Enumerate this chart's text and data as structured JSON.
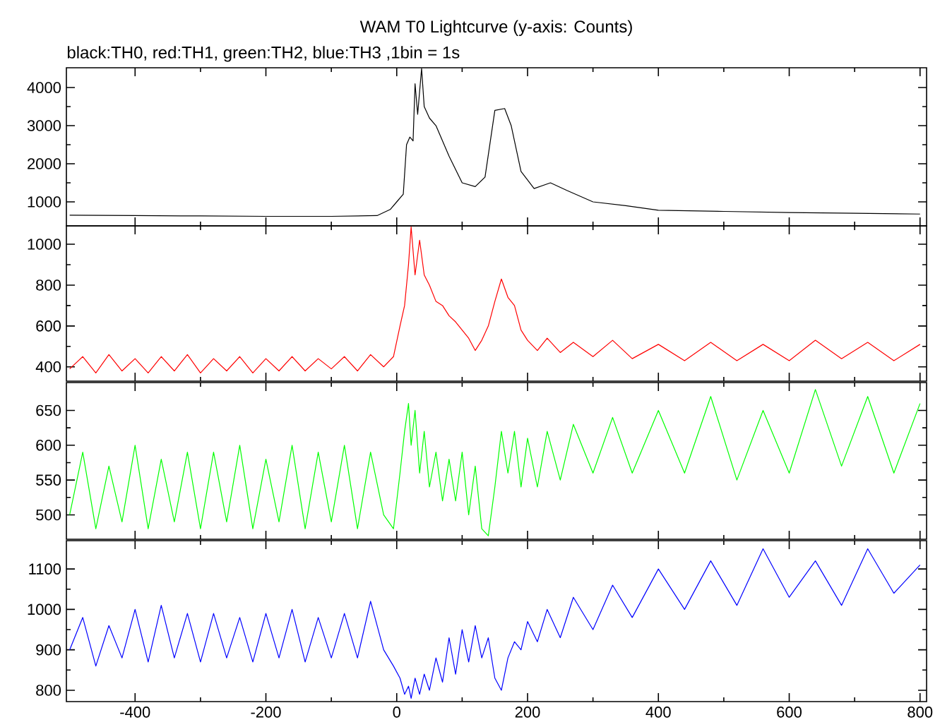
{
  "chart_data": [
    {
      "type": "line",
      "title": "WAM T0 Lightcurve (y-axis: Counts)",
      "subtitle": "black:TH0, red:TH1, green:TH2, blue:TH3 ,1bin = 1s",
      "x": [
        -500,
        -400,
        -300,
        -200,
        -100,
        -30,
        -10,
        0,
        10,
        15,
        20,
        25,
        28,
        32,
        38,
        42,
        50,
        60,
        80,
        100,
        120,
        135,
        150,
        165,
        175,
        190,
        210,
        235,
        260,
        300,
        350,
        400,
        500,
        600,
        700,
        800
      ],
      "series": [
        {
          "color": "#000000",
          "values": [
            650,
            640,
            630,
            620,
            620,
            640,
            800,
            1000,
            1200,
            2500,
            2700,
            2600,
            4100,
            3300,
            4500,
            3500,
            3200,
            3000,
            2200,
            1500,
            1400,
            1650,
            3400,
            3450,
            3000,
            1800,
            1350,
            1500,
            1300,
            1000,
            900,
            780,
            750,
            720,
            700,
            680
          ]
        }
      ],
      "xlim": [
        -505,
        810
      ],
      "ylim": [
        370,
        4520
      ],
      "xticks": [
        -400,
        -200,
        0,
        200,
        400,
        600,
        800
      ],
      "yticks": [
        1000,
        2000,
        3000,
        4000
      ],
      "tick_labels": "y",
      "line_style": "solid"
    },
    {
      "type": "line",
      "x": [
        -500,
        -480,
        -460,
        -440,
        -420,
        -400,
        -380,
        -360,
        -340,
        -320,
        -300,
        -280,
        -260,
        -240,
        -220,
        -200,
        -180,
        -160,
        -140,
        -120,
        -100,
        -80,
        -60,
        -40,
        -20,
        -5,
        5,
        12,
        18,
        22,
        28,
        35,
        42,
        50,
        60,
        70,
        80,
        90,
        100,
        110,
        120,
        130,
        140,
        150,
        160,
        170,
        180,
        190,
        200,
        215,
        230,
        250,
        270,
        300,
        330,
        360,
        400,
        440,
        480,
        520,
        560,
        600,
        640,
        680,
        720,
        760,
        800
      ],
      "series": [
        {
          "color": "#ff0000",
          "values": [
            390,
            450,
            370,
            460,
            380,
            440,
            370,
            450,
            380,
            460,
            370,
            440,
            380,
            450,
            370,
            440,
            380,
            450,
            380,
            440,
            390,
            450,
            380,
            460,
            400,
            450,
            600,
            700,
            900,
            1085,
            850,
            1020,
            850,
            800,
            720,
            700,
            650,
            620,
            580,
            540,
            480,
            530,
            600,
            720,
            830,
            740,
            700,
            580,
            530,
            480,
            540,
            470,
            520,
            450,
            530,
            440,
            510,
            430,
            520,
            430,
            510,
            430,
            530,
            440,
            520,
            430,
            510
          ]
        }
      ],
      "xlim": [
        -505,
        810
      ],
      "ylim": [
        330,
        1090
      ],
      "xticks": [
        -400,
        -200,
        0,
        200,
        400,
        600,
        800
      ],
      "yticks": [
        400,
        600,
        800,
        1000
      ],
      "tick_labels": "y",
      "line_style": "solid"
    },
    {
      "type": "line",
      "x": [
        -500,
        -480,
        -460,
        -440,
        -420,
        -400,
        -380,
        -360,
        -340,
        -320,
        -300,
        -280,
        -260,
        -240,
        -220,
        -200,
        -180,
        -160,
        -140,
        -120,
        -100,
        -80,
        -60,
        -40,
        -20,
        -5,
        5,
        12,
        18,
        22,
        28,
        35,
        42,
        50,
        60,
        70,
        80,
        90,
        100,
        110,
        120,
        130,
        140,
        150,
        160,
        170,
        180,
        190,
        200,
        215,
        230,
        250,
        270,
        300,
        330,
        360,
        400,
        440,
        480,
        520,
        560,
        600,
        640,
        680,
        720,
        760,
        800
      ],
      "series": [
        {
          "color": "#00ff00",
          "values": [
            500,
            590,
            480,
            570,
            490,
            600,
            480,
            580,
            490,
            590,
            480,
            590,
            490,
            600,
            480,
            580,
            490,
            600,
            480,
            590,
            490,
            600,
            480,
            590,
            500,
            480,
            560,
            620,
            660,
            600,
            650,
            560,
            620,
            540,
            590,
            520,
            580,
            520,
            590,
            500,
            570,
            480,
            470,
            540,
            620,
            560,
            620,
            540,
            610,
            540,
            620,
            550,
            630,
            560,
            640,
            560,
            650,
            560,
            670,
            550,
            650,
            560,
            680,
            570,
            670,
            560,
            660
          ]
        }
      ],
      "xlim": [
        -505,
        810
      ],
      "ylim": [
        465,
        690
      ],
      "xticks": [
        -400,
        -200,
        0,
        200,
        400,
        600,
        800
      ],
      "yticks": [
        500,
        550,
        600,
        650
      ],
      "tick_labels": "y",
      "line_style": "solid"
    },
    {
      "type": "line",
      "x": [
        -500,
        -480,
        -460,
        -440,
        -420,
        -400,
        -380,
        -360,
        -340,
        -320,
        -300,
        -280,
        -260,
        -240,
        -220,
        -200,
        -180,
        -160,
        -140,
        -120,
        -100,
        -80,
        -60,
        -40,
        -20,
        -5,
        5,
        12,
        18,
        22,
        28,
        35,
        42,
        50,
        60,
        70,
        80,
        90,
        100,
        110,
        120,
        130,
        140,
        150,
        160,
        170,
        180,
        190,
        200,
        215,
        230,
        250,
        270,
        300,
        330,
        360,
        400,
        440,
        480,
        520,
        560,
        600,
        640,
        680,
        720,
        760,
        800
      ],
      "series": [
        {
          "color": "#0000ff",
          "values": [
            900,
            980,
            860,
            960,
            880,
            1000,
            870,
            1010,
            880,
            990,
            870,
            990,
            880,
            980,
            870,
            990,
            880,
            1000,
            870,
            980,
            880,
            990,
            880,
            1020,
            900,
            860,
            830,
            790,
            810,
            780,
            830,
            790,
            840,
            800,
            880,
            820,
            930,
            840,
            950,
            870,
            960,
            880,
            930,
            830,
            800,
            880,
            920,
            900,
            970,
            920,
            1000,
            930,
            1030,
            950,
            1060,
            980,
            1100,
            1000,
            1120,
            1010,
            1150,
            1030,
            1120,
            1010,
            1150,
            1040,
            1110
          ]
        }
      ],
      "xlim": [
        -505,
        810
      ],
      "ylim": [
        772,
        1170
      ],
      "xticks": [
        -400,
        -200,
        0,
        200,
        400,
        600,
        800
      ],
      "yticks": [
        800,
        900,
        1000,
        1100
      ],
      "line_style": "solid"
    }
  ]
}
